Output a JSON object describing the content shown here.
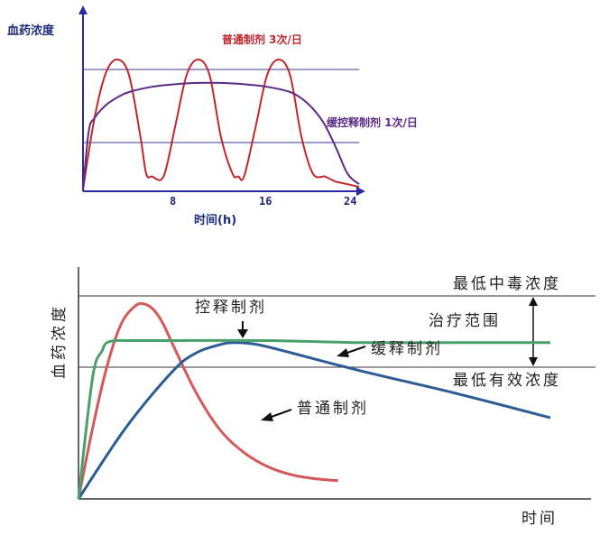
{
  "chart_data": [
    {
      "type": "line",
      "ylabel": "血药浓度",
      "xlabel": "时间(h)",
      "xlim": [
        0,
        24
      ],
      "xticks": [
        "8",
        "16",
        "24"
      ],
      "reference_lines": 2,
      "series": [
        {
          "name": "普通制剂  3次/日",
          "color": "#c0282c",
          "x": [
            0,
            1,
            2,
            3,
            4,
            5,
            5.5,
            6,
            7,
            8,
            9,
            10,
            11,
            12,
            13,
            13.5,
            14,
            15,
            16,
            17,
            18,
            19,
            20,
            21,
            21.5,
            22,
            23,
            24
          ],
          "y": [
            0,
            55,
            90,
            100,
            88,
            40,
            12,
            10,
            10,
            48,
            88,
            100,
            88,
            40,
            12,
            10,
            10,
            48,
            88,
            100,
            88,
            40,
            12,
            10,
            8,
            6,
            4,
            2
          ]
        },
        {
          "name": "缓控释制剂  1次/日",
          "color": "#5a2a86",
          "x": [
            0,
            0.5,
            1,
            2,
            3,
            4,
            6,
            8,
            10,
            12,
            14,
            16,
            18,
            19,
            20,
            21,
            22,
            23,
            24
          ],
          "y": [
            0,
            45,
            55,
            65,
            71,
            75,
            79,
            81,
            82,
            82,
            81,
            79,
            75,
            70,
            62,
            50,
            32,
            12,
            4
          ]
        }
      ]
    },
    {
      "type": "line",
      "ylabel": "血药浓度",
      "xlabel": "时间",
      "reference_lines": [
        {
          "label": "最低中毒浓度",
          "value": 100
        },
        {
          "label": "最低有效浓度",
          "value": 64
        }
      ],
      "range_label": "治疗范围",
      "series": [
        {
          "name": "控释制剂",
          "color": "#4aa06a",
          "x": [
            0,
            3,
            5,
            6,
            8,
            10,
            15,
            20,
            40,
            60,
            80,
            100
          ],
          "y": [
            0,
            60,
            73,
            77,
            78,
            78,
            78,
            78,
            78,
            77,
            77,
            77
          ]
        },
        {
          "name": "缓释制剂",
          "color": "#2b5c96",
          "x": [
            0,
            10,
            20,
            25,
            30,
            33,
            38,
            45,
            60,
            80,
            100
          ],
          "y": [
            0,
            35,
            63,
            72,
            76,
            77,
            76,
            72,
            63,
            52,
            40
          ]
        },
        {
          "name": "普通制剂",
          "color": "#d45a5a",
          "x": [
            0,
            3,
            6,
            9,
            12,
            14,
            16,
            18,
            20,
            25,
            30,
            35,
            40,
            45,
            50,
            55
          ],
          "y": [
            0,
            35,
            65,
            86,
            95,
            96,
            93,
            86,
            76,
            52,
            34,
            23,
            16,
            12,
            10,
            9
          ]
        }
      ]
    }
  ]
}
